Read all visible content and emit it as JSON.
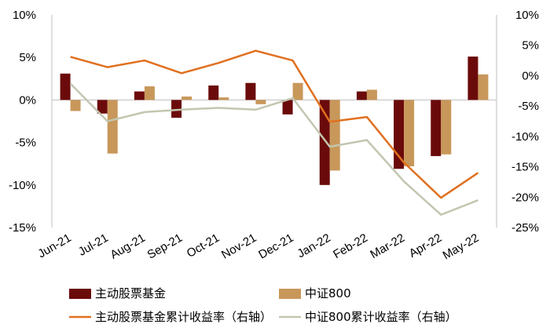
{
  "chart_data": {
    "type": "bar+line",
    "categories": [
      "Jun-21",
      "Jul-21",
      "Aug-21",
      "Sep-21",
      "Oct-21",
      "Nov-21",
      "Dec-21",
      "Jan-22",
      "Feb-22",
      "Mar-22",
      "Apr-22",
      "May-22"
    ],
    "left_axis": {
      "ylim": [
        -15,
        10
      ],
      "ticks": [
        10,
        5,
        0,
        -5,
        -10,
        -15
      ],
      "tick_labels": [
        "10%",
        "5%",
        "0%",
        "-5%",
        "-10%",
        "-15%"
      ]
    },
    "right_axis": {
      "ylim": [
        -25,
        10
      ],
      "ticks": [
        10,
        5,
        0,
        -5,
        -10,
        -15,
        -20,
        -25
      ],
      "tick_labels": [
        "10%",
        "5%",
        "0%",
        "-5%",
        "-10%",
        "-15%",
        "-20%",
        "-25%"
      ]
    },
    "series": [
      {
        "name": "主动股票基金",
        "type": "bar",
        "axis": "left",
        "color": "#6b0a0a",
        "values": [
          3.1,
          -1.6,
          1.0,
          -2.1,
          1.7,
          2.0,
          -1.7,
          -10.0,
          1.0,
          -8.1,
          -6.6,
          5.1
        ]
      },
      {
        "name": "中证800",
        "type": "bar",
        "axis": "left",
        "color": "#c8975a",
        "values": [
          -1.3,
          -6.3,
          1.6,
          0.4,
          0.3,
          -0.5,
          2.0,
          -8.3,
          1.2,
          -7.8,
          -6.4,
          3.0
        ]
      },
      {
        "name": "主动股票基金累计收益率（右轴）",
        "type": "line",
        "axis": "right",
        "color": "#e07020",
        "values": [
          3.1,
          1.4,
          2.5,
          0.4,
          2.1,
          4.1,
          2.5,
          -7.6,
          -6.8,
          -14.3,
          -20.1,
          -16.0
        ]
      },
      {
        "name": "中证800累计收益率（右轴）",
        "type": "line",
        "axis": "right",
        "color": "#c2c7b0",
        "values": [
          -1.3,
          -7.5,
          -6.0,
          -5.6,
          -5.3,
          -5.6,
          -3.7,
          -11.7,
          -10.6,
          -17.4,
          -22.9,
          -20.5
        ]
      }
    ]
  }
}
